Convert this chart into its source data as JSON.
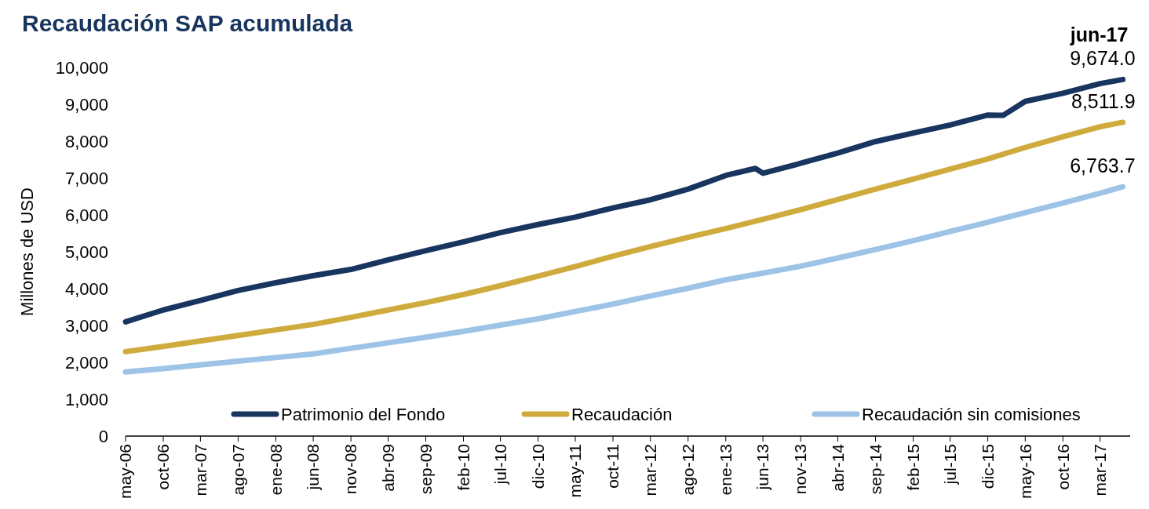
{
  "chart_data": {
    "type": "line",
    "title": "Recaudación SAP acumulada",
    "ylabel": "Millones de USD",
    "x": [
      "2006-05",
      "2006-10",
      "2007-03",
      "2007-08",
      "2008-01",
      "2008-06",
      "2008-11",
      "2009-04",
      "2009-09",
      "2010-02",
      "2010-07",
      "2010-12",
      "2011-05",
      "2011-10",
      "2012-03",
      "2012-08",
      "2013-01",
      "2013-06",
      "2013-11",
      "2014-04",
      "2014-09",
      "2015-02",
      "2015-07",
      "2015-12",
      "2016-05",
      "2016-10",
      "2017-03",
      "2017-06"
    ],
    "series": [
      {
        "name": "Patrimonio del Fondo",
        "color": "#17355e",
        "x": [
          "2006-05",
          "2006-10",
          "2007-03",
          "2007-08",
          "2008-01",
          "2008-06",
          "2008-11",
          "2009-04",
          "2009-09",
          "2010-02",
          "2010-07",
          "2010-12",
          "2011-05",
          "2011-10",
          "2012-03",
          "2012-08",
          "2013-01",
          "2013-05",
          "2013-06",
          "2013-11",
          "2014-04",
          "2014-09",
          "2015-02",
          "2015-07",
          "2015-12",
          "2016-02",
          "2016-05",
          "2016-10",
          "2017-03",
          "2017-06"
        ],
        "values": [
          3100,
          3420,
          3680,
          3950,
          4160,
          4350,
          4520,
          4780,
          5030,
          5270,
          5520,
          5740,
          5940,
          6190,
          6410,
          6700,
          7070,
          7260,
          7130,
          7400,
          7680,
          7990,
          8220,
          8440,
          8710,
          8700,
          9080,
          9300,
          9560,
          9674.0
        ],
        "value_labels": [
          null,
          null,
          null,
          null,
          null,
          null,
          null,
          null,
          null,
          null,
          null,
          null,
          null,
          null,
          null,
          null,
          null,
          null,
          null,
          null,
          null,
          null,
          null,
          null,
          null,
          null,
          null,
          null,
          null,
          "9,674.0"
        ]
      },
      {
        "name": "Recaudación",
        "color": "#cfab3e",
        "values": [
          2290,
          2430,
          2580,
          2730,
          2880,
          3030,
          3220,
          3420,
          3620,
          3840,
          4080,
          4340,
          4600,
          4880,
          5140,
          5390,
          5630,
          5880,
          6140,
          6420,
          6700,
          6970,
          7240,
          7520,
          7830,
          8120,
          8390,
          8511.9
        ],
        "value_labels": [
          null,
          null,
          null,
          null,
          null,
          null,
          null,
          null,
          null,
          null,
          null,
          null,
          null,
          null,
          null,
          null,
          null,
          null,
          null,
          null,
          null,
          null,
          null,
          null,
          null,
          null,
          null,
          "8,511.9"
        ]
      },
      {
        "name": "Recaudación sin comisiones",
        "color": "#9dc3e6",
        "values": [
          1740,
          1830,
          1930,
          2030,
          2130,
          2230,
          2380,
          2530,
          2680,
          2840,
          3010,
          3180,
          3380,
          3580,
          3800,
          4010,
          4240,
          4420,
          4610,
          4830,
          5060,
          5300,
          5550,
          5800,
          6060,
          6320,
          6590,
          6763.7
        ],
        "value_labels": [
          null,
          null,
          null,
          null,
          null,
          null,
          null,
          null,
          null,
          null,
          null,
          null,
          null,
          null,
          null,
          null,
          null,
          null,
          null,
          null,
          null,
          null,
          null,
          null,
          null,
          null,
          null,
          "6,763.7"
        ]
      }
    ],
    "annotations": [
      {
        "text": "jun-17",
        "x": "2017-06",
        "y": 9674.0
      }
    ],
    "xlim": [
      "2006-05",
      "2017-07"
    ],
    "xticks": [
      {
        "value": "2006-05",
        "label": "may-06"
      },
      {
        "value": "2006-10",
        "label": "oct-06"
      },
      {
        "value": "2007-03",
        "label": "mar-07"
      },
      {
        "value": "2007-08",
        "label": "ago-07"
      },
      {
        "value": "2008-01",
        "label": "ene-08"
      },
      {
        "value": "2008-06",
        "label": "jun-08"
      },
      {
        "value": "2008-11",
        "label": "nov-08"
      },
      {
        "value": "2009-04",
        "label": "abr-09"
      },
      {
        "value": "2009-09",
        "label": "sep-09"
      },
      {
        "value": "2010-02",
        "label": "feb-10"
      },
      {
        "value": "2010-07",
        "label": "jul-10"
      },
      {
        "value": "2010-12",
        "label": "dic-10"
      },
      {
        "value": "2011-05",
        "label": "may-11"
      },
      {
        "value": "2011-10",
        "label": "oct-11"
      },
      {
        "value": "2012-03",
        "label": "mar-12"
      },
      {
        "value": "2012-08",
        "label": "ago-12"
      },
      {
        "value": "2013-01",
        "label": "ene-13"
      },
      {
        "value": "2013-06",
        "label": "jun-13"
      },
      {
        "value": "2013-11",
        "label": "nov-13"
      },
      {
        "value": "2014-04",
        "label": "abr-14"
      },
      {
        "value": "2014-09",
        "label": "sep-14"
      },
      {
        "value": "2015-02",
        "label": "feb-15"
      },
      {
        "value": "2015-07",
        "label": "jul-15"
      },
      {
        "value": "2015-12",
        "label": "dic-15"
      },
      {
        "value": "2016-05",
        "label": "may-16"
      },
      {
        "value": "2016-10",
        "label": "oct-16"
      },
      {
        "value": "2017-03",
        "label": "mar-17"
      }
    ],
    "ylim": [
      0,
      10000
    ],
    "yticks": [
      {
        "value": 0,
        "label": "0"
      },
      {
        "value": 1000,
        "label": "1,000"
      },
      {
        "value": 2000,
        "label": "2,000"
      },
      {
        "value": 3000,
        "label": "3,000"
      },
      {
        "value": 4000,
        "label": "4,000"
      },
      {
        "value": 5000,
        "label": "5,000"
      },
      {
        "value": 6000,
        "label": "6,000"
      },
      {
        "value": 7000,
        "label": "7,000"
      },
      {
        "value": 8000,
        "label": "8,000"
      },
      {
        "value": 9000,
        "label": "9,000"
      },
      {
        "value": 10000,
        "label": "10,000"
      }
    ],
    "grid": false,
    "legend": "bottom",
    "line_style": "solid",
    "marker": "none"
  }
}
